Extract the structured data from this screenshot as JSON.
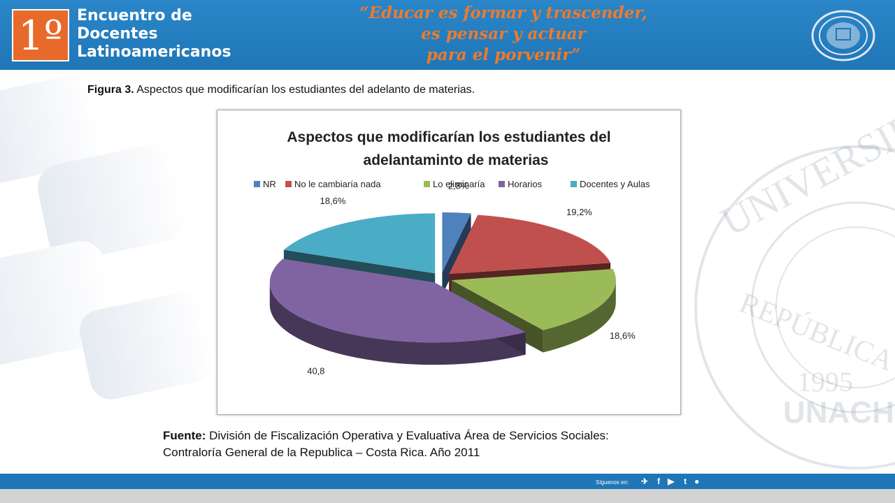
{
  "header": {
    "logo_number": "1º",
    "logo_line1": "Encuentro de",
    "logo_line2": "Docentes",
    "logo_line3": "Latinoamericanos",
    "slogan_line1": "“Educar es formar y trascender,",
    "slogan_line2": "es pensar y actuar",
    "slogan_line3": "para el porvenir”"
  },
  "caption": {
    "label": "Figura 3.",
    "text": " Aspectos que modificarían los estudiantes del adelanto de materias."
  },
  "chart_data": {
    "type": "pie",
    "title_line1": "Aspectos que modificarían los estudiantes del",
    "title_line2": "adelantamint​o de materias",
    "categories": [
      "NR",
      "No le cambiaría nada",
      "Lo eliminaría",
      "Horarios",
      "Docentes y Aulas"
    ],
    "values": [
      2.8,
      19.2,
      18.6,
      40.8,
      18.6
    ],
    "data_labels": [
      "2,8%",
      "19,2%",
      "18,6%",
      "40,8",
      "18,6%"
    ],
    "colors": [
      "#4f81bd",
      "#c0504d",
      "#9bbb59",
      "#8064a2",
      "#4bacc6"
    ],
    "legend_position": "top",
    "style": "3d-exploded"
  },
  "source": {
    "label": "Fuente:",
    "line1": " División de Fiscalización Operativa y Evaluativa Área de Servicios Sociales:",
    "line2": "Contraloría General de la Republica – Costa Rica. Año 2011"
  },
  "footer": {
    "follow_text": "Síguenos en:"
  },
  "watermark": {
    "arc_top": "UNIVERSIDAD AUTÓNOMA",
    "arc_bottom": "REPÚBLICA DE PANAMÁ",
    "year": "1995",
    "acronym": "UNACHI"
  }
}
